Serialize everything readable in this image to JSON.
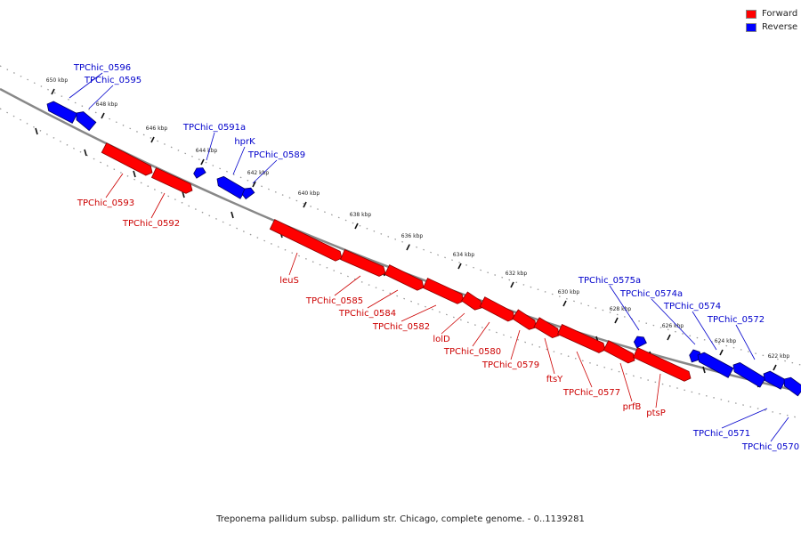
{
  "legend": [
    {
      "label": "Forward",
      "color": "#ff0000"
    },
    {
      "label": "Reverse",
      "color": "#0000ff"
    }
  ],
  "caption": "Treponema pallidum subsp. pallidum str. Chicago, complete genome. - 0..1139281",
  "colors": {
    "forward": "#ff0000",
    "reverse": "#0000ff",
    "forward_label": "#cc0000",
    "reverse_label": "#0000cc",
    "backbone": "#888888"
  },
  "ticks": [
    "650 kbp",
    "648 kbp",
    "646 kbp",
    "644 kbp",
    "642 kbp",
    "640 kbp",
    "638 kbp",
    "636 kbp",
    "634 kbp",
    "632 kbp",
    "630 kbp",
    "628 kbp",
    "626 kbp",
    "624 kbp",
    "622 kbp"
  ],
  "genes": [
    {
      "name": "TPChic_0596",
      "strand": "reverse"
    },
    {
      "name": "TPChic_0595",
      "strand": "reverse"
    },
    {
      "name": "TPChic_0593",
      "strand": "forward"
    },
    {
      "name": "TPChic_0592",
      "strand": "forward"
    },
    {
      "name": "TPChic_0591a",
      "strand": "reverse"
    },
    {
      "name": "hprK",
      "strand": "reverse"
    },
    {
      "name": "TPChic_0589",
      "strand": "reverse"
    },
    {
      "name": "leuS",
      "strand": "forward"
    },
    {
      "name": "TPChic_0585",
      "strand": "forward"
    },
    {
      "name": "TPChic_0584",
      "strand": "forward"
    },
    {
      "name": "TPChic_0582",
      "strand": "forward"
    },
    {
      "name": "lolD",
      "strand": "forward"
    },
    {
      "name": "TPChic_0580",
      "strand": "forward"
    },
    {
      "name": "TPChic_0579",
      "strand": "forward"
    },
    {
      "name": "ftsY",
      "strand": "forward"
    },
    {
      "name": "TPChic_0577",
      "strand": "forward"
    },
    {
      "name": "prfB",
      "strand": "forward"
    },
    {
      "name": "ptsP",
      "strand": "forward"
    },
    {
      "name": "TPChic_0575a",
      "strand": "reverse"
    },
    {
      "name": "TPChic_0574a",
      "strand": "reverse"
    },
    {
      "name": "TPChic_0574",
      "strand": "reverse"
    },
    {
      "name": "TPChic_0572",
      "strand": "reverse"
    },
    {
      "name": "TPChic_0571",
      "strand": "reverse"
    },
    {
      "name": "TPChic_0570",
      "strand": "reverse"
    }
  ]
}
